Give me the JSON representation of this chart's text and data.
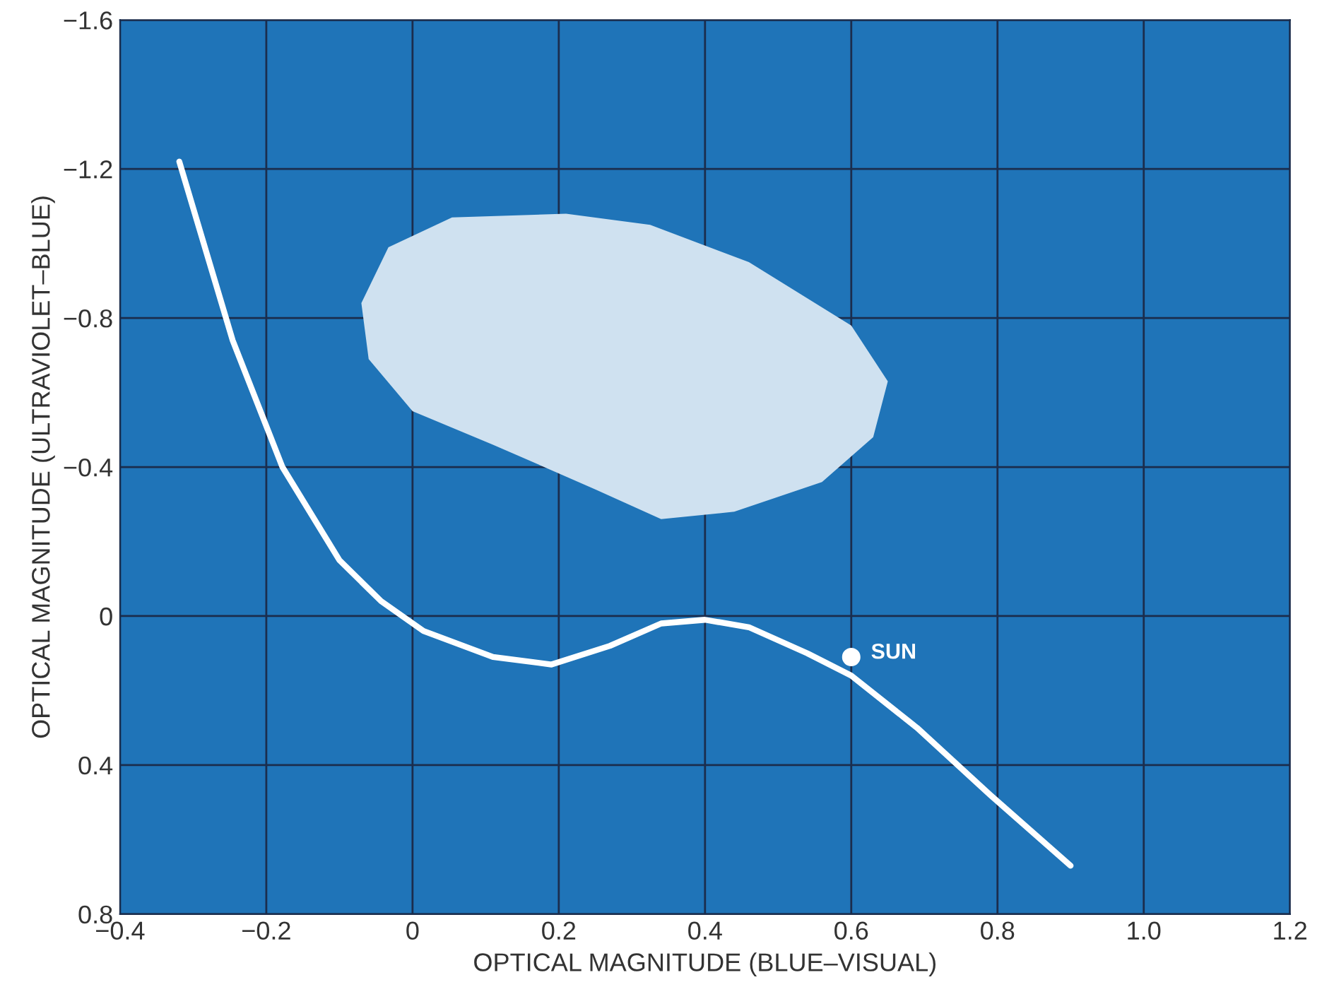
{
  "chart_data": {
    "type": "line",
    "xlabel": "OPTICAL MAGNITUDE (BLUE–VISUAL)",
    "ylabel": "OPTICAL MAGNITUDE (ULTRAVIOLET–BLUE)",
    "xlim": [
      -0.4,
      1.2
    ],
    "ylim": [
      0.8,
      -1.6
    ],
    "xticks": [
      {
        "value": -0.4,
        "label": "−0.4"
      },
      {
        "value": -0.2,
        "label": "−0.2"
      },
      0,
      0.2,
      0.4,
      0.6,
      0.8,
      {
        "value": 1.0,
        "label": "1.0"
      },
      1.2
    ],
    "yticks": [
      {
        "value": -1.6,
        "label": "−1.6"
      },
      {
        "value": -1.2,
        "label": "−1.2"
      },
      {
        "value": -0.8,
        "label": "−0.8"
      },
      {
        "value": -0.4,
        "label": "−0.4"
      },
      0,
      0.4,
      0.8
    ],
    "grid": true,
    "series": [
      {
        "type": "area",
        "color": "#cfe1f0",
        "x": [
          -0.07,
          -0.033,
          0.054,
          0.21,
          0.325,
          0.46,
          0.6,
          0.65,
          0.63,
          0.56,
          0.44,
          0.34,
          0.25,
          0.11,
          0.0,
          -0.06
        ],
        "values": [
          -0.84,
          -0.99,
          -1.07,
          -1.08,
          -1.05,
          -0.95,
          -0.78,
          -0.63,
          -0.48,
          -0.36,
          -0.28,
          -0.26,
          -0.34,
          -0.46,
          -0.55,
          -0.69
        ]
      },
      {
        "color": "#ffffff",
        "x": [
          -0.319,
          -0.246,
          -0.178,
          -0.1,
          -0.043,
          0.015,
          0.11,
          0.19,
          0.27,
          0.34,
          0.4,
          0.46,
          0.54,
          0.6,
          0.69,
          0.79,
          0.9
        ],
        "values": [
          -1.22,
          -0.74,
          -0.4,
          -0.15,
          -0.04,
          0.04,
          0.11,
          0.13,
          0.08,
          0.02,
          0.01,
          0.03,
          0.1,
          0.16,
          0.3,
          0.48,
          0.67
        ]
      },
      {
        "type": "scatter",
        "name": "SUN",
        "color": "#ffffff",
        "x": [
          0.6
        ],
        "values": [
          0.11
        ]
      }
    ]
  }
}
